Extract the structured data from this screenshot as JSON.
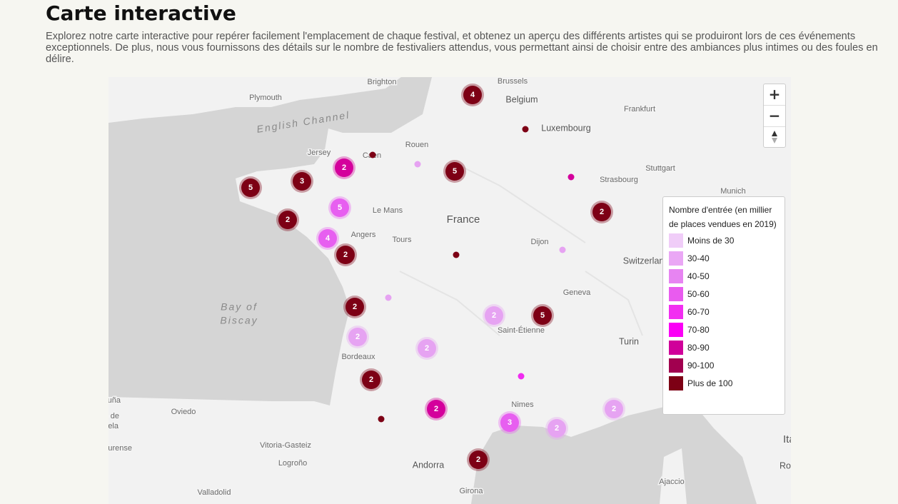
{
  "header": {
    "title": "Carte interactive",
    "description": "Explorez notre carte interactive pour repérer facilement l'emplacement de chaque festival, et obtenez un aperçu des différents artistes qui se produiront lors de ces événements exceptionnels. De plus, nous vous fournissons des détails sur le nombre de festivaliers attendus, vous permettant ainsi de choisir entre des ambiances plus intimes ou des foules en délire."
  },
  "map": {
    "labels": [
      "Brussels",
      "Belgium",
      "Brighton",
      "Plymouth",
      "English Channel",
      "Frankfurt",
      "Luxembourg",
      "Rouen",
      "Jersey",
      "Caen",
      "Stuttgart",
      "Strasbourg",
      "Munich",
      "Le Mans",
      "France",
      "Angers",
      "Tours",
      "Dijon",
      "Switzerland",
      "Geneva",
      "Bay of",
      "Biscay",
      "Saint-Étienne",
      "Turin",
      "Bordeaux",
      "Nimes",
      "Oviedo",
      "Vitoria-Gasteiz",
      "Logroño",
      "Andorra",
      "Valladolid",
      "Girona",
      "Ajaccio",
      "Italia",
      "Roma",
      "A Coruña",
      "Santiago de",
      "Compostela",
      "Ourense"
    ],
    "markers": [
      {
        "count": 4,
        "color": "#7d0015"
      },
      {
        "color": "#7d0015"
      },
      {
        "color": "#7d0015"
      },
      {
        "color": "#e6a3f2"
      },
      {
        "count": 2,
        "color": "#d4009c"
      },
      {
        "count": 5,
        "color": "#7d0015"
      },
      {
        "color": "#d4009c"
      },
      {
        "count": 3,
        "color": "#7d0015"
      },
      {
        "count": 5,
        "color": "#7d0015"
      },
      {
        "count": 5,
        "color": "#e75ff0"
      },
      {
        "count": 2,
        "color": "#7d0015"
      },
      {
        "count": 2,
        "color": "#7d0015"
      },
      {
        "count": 4,
        "color": "#e75ff0"
      },
      {
        "count": 2,
        "color": "#7d0015"
      },
      {
        "color": "#7d0015"
      },
      {
        "color": "#e6a3f2"
      },
      {
        "color": "#e6a3f2"
      },
      {
        "count": 2,
        "color": "#7d0015"
      },
      {
        "count": 2,
        "color": "#e6a3f2"
      },
      {
        "count": 5,
        "color": "#7d0015"
      },
      {
        "count": 2,
        "color": "#e6a3f2"
      },
      {
        "count": 2,
        "color": "#e6a3f2"
      },
      {
        "count": 2,
        "color": "#7d0015"
      },
      {
        "color": "#f02cf0"
      },
      {
        "count": 2,
        "color": "#d4009c"
      },
      {
        "color": "#7d0015"
      },
      {
        "count": 2,
        "color": "#e6a3f2"
      },
      {
        "count": 3,
        "color": "#e75ff0"
      },
      {
        "count": 2,
        "color": "#e6a3f2"
      },
      {
        "count": 2,
        "color": "#7d0015"
      }
    ],
    "zoom_in": "+",
    "zoom_out": "−"
  },
  "legend": {
    "title": "Nombre d'entrée (en millier de places vendues en 2019)",
    "items": [
      {
        "label": "Moins de 30",
        "color": "#f0cdf8"
      },
      {
        "label": "30-40",
        "color": "#eaa7f5"
      },
      {
        "label": "40-50",
        "color": "#e784f2"
      },
      {
        "label": "50-60",
        "color": "#e95bef"
      },
      {
        "label": "60-70",
        "color": "#f22ef1"
      },
      {
        "label": "70-80",
        "color": "#fb00f6"
      },
      {
        "label": "80-90",
        "color": "#d0009a"
      },
      {
        "label": "90-100",
        "color": "#a1004f"
      },
      {
        "label": "Plus de 100",
        "color": "#7d0015"
      }
    ]
  }
}
